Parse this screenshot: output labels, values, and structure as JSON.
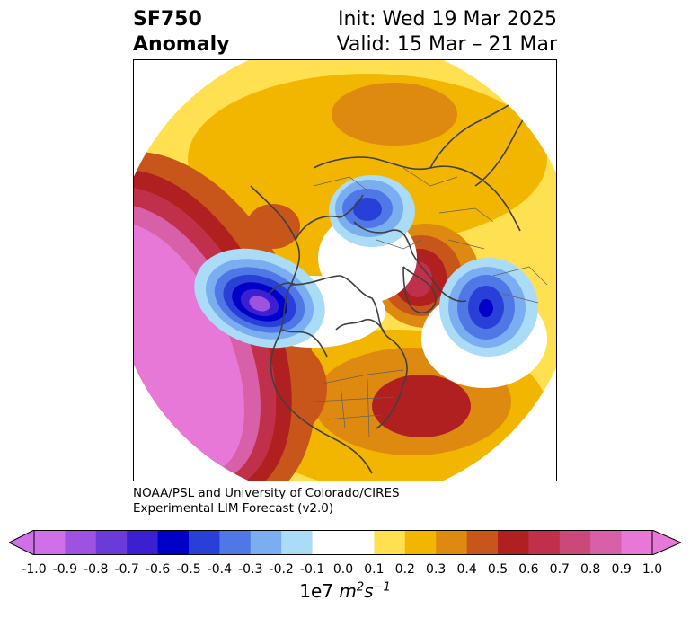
{
  "title": {
    "left_line1": "SF750",
    "left_line2": "Anomaly",
    "right_line1": "Init: Wed 19 Mar 2025",
    "right_line2": "Valid: 15 Mar – 21 Mar"
  },
  "credit": {
    "line1": "NOAA/PSL and University of Colorado/CIRES",
    "line2": "Experimental LIM Forecast (v2.0)"
  },
  "colorbar": {
    "ticks": [
      "-1.0",
      "-0.9",
      "-0.8",
      "-0.7",
      "-0.6",
      "-0.5",
      "-0.4",
      "-0.3",
      "-0.2",
      "-0.1",
      "0.0",
      "0.1",
      "0.2",
      "0.3",
      "0.4",
      "0.5",
      "0.6",
      "0.7",
      "0.8",
      "0.9",
      "1.0"
    ],
    "colors": [
      "#d070e8",
      "#9d52e0",
      "#6b3ad9",
      "#3b1fd0",
      "#0000c8",
      "#2840d8",
      "#4f78e6",
      "#7aaef0",
      "#aadcf8",
      "#ffffff",
      "#ffffff",
      "#ffe050",
      "#f2b600",
      "#de8a10",
      "#c8561a",
      "#b02020",
      "#c0304a",
      "#cc4878",
      "#d860a8",
      "#e878d8"
    ],
    "extend_low_color": "#d070e8",
    "extend_high_color": "#e878d8",
    "units_base": "1e7",
    "units_m": "m",
    "units_m_exp": "2",
    "units_s": "s",
    "units_s_exp": "−1"
  },
  "map": {
    "projection": "north-polar-stereographic",
    "anomaly_features": [
      {
        "type": "negative",
        "level": -0.6,
        "region": "Gulf of Alaska / NE Pacific"
      },
      {
        "type": "negative",
        "level": -0.5,
        "region": "Arctic Ocean"
      },
      {
        "type": "negative",
        "level": -0.6,
        "region": "North Atlantic / Greenland"
      },
      {
        "type": "positive",
        "level": 0.9,
        "region": "Subtropical North Pacific"
      },
      {
        "type": "positive",
        "level": 0.6,
        "region": "Eastern North Atlantic"
      },
      {
        "type": "positive",
        "level": 0.6,
        "region": "Canadian Arctic / Baffin"
      },
      {
        "type": "positive",
        "level": 0.4,
        "region": "Central Asia"
      },
      {
        "type": "positive",
        "level": 0.6,
        "region": "Western United States"
      }
    ]
  }
}
